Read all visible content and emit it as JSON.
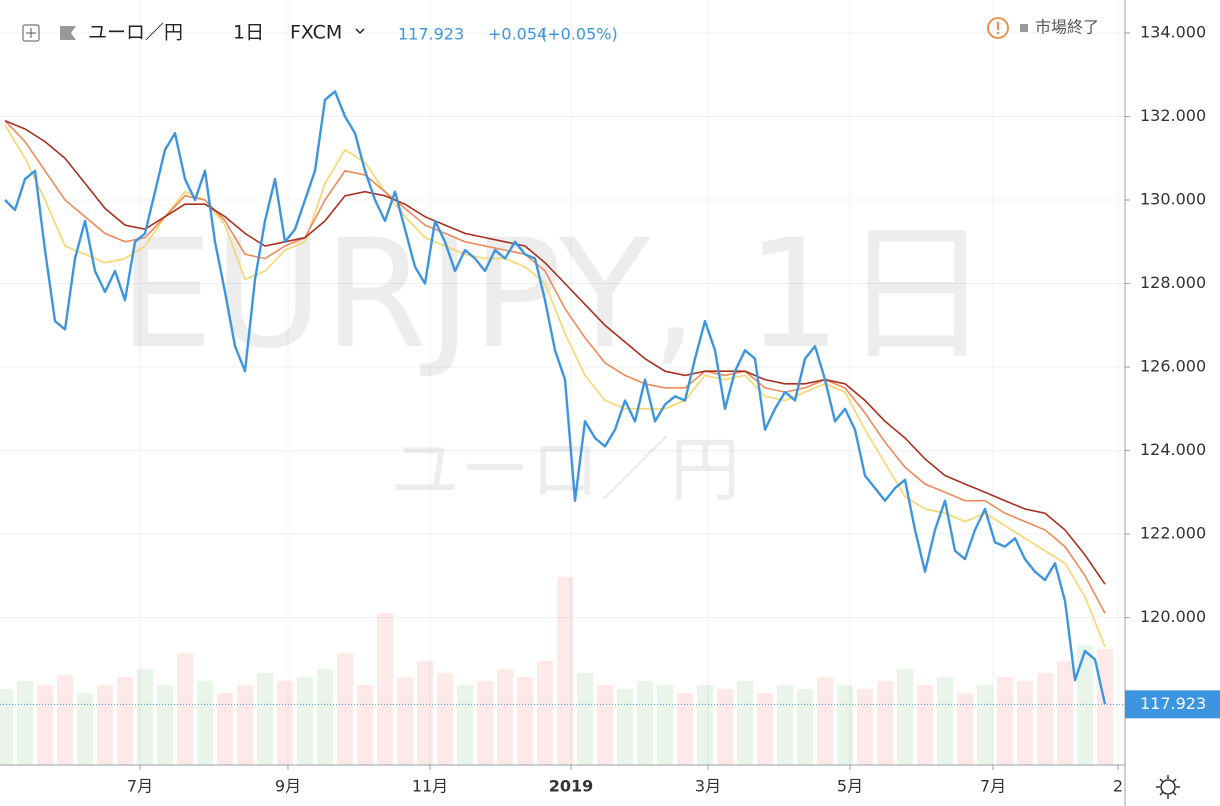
{
  "chart_data": {
    "type": "line",
    "symbol": "ユーロ／円",
    "interval": "1日",
    "source": "FXCM",
    "last_price": 117.923,
    "change": {
      "value": 0.054,
      "label": "+0.054"
    },
    "change_pct": {
      "value": 0.05,
      "label": "(+0.05%)"
    },
    "status": "市場終了",
    "watermark": "EURJPY, 1日",
    "xlim": [
      -0.5,
      112
    ],
    "xticks": [
      {
        "value": 13.5,
        "label": "7月"
      },
      {
        "value": 28.3,
        "label": "9月"
      },
      {
        "value": 42.5,
        "label": "11月"
      },
      {
        "value": 56.6,
        "label": "2019"
      },
      {
        "value": 70.3,
        "label": "3月"
      },
      {
        "value": 84.5,
        "label": "5月"
      },
      {
        "value": 98.8,
        "label": "7月"
      },
      {
        "value": 111.3,
        "label": "2"
      }
    ],
    "ylim": [
      116.47,
      134.79
    ],
    "yticks": [
      {
        "value": 120,
        "label": "120.000"
      },
      {
        "value": 122,
        "label": "122.000"
      },
      {
        "value": 124,
        "label": "124.000"
      },
      {
        "value": 126,
        "label": "126.000"
      },
      {
        "value": 128,
        "label": "128.000"
      },
      {
        "value": 130,
        "label": "130.000"
      },
      {
        "value": 132,
        "label": "132.000"
      },
      {
        "value": 134,
        "label": "134.000"
      }
    ],
    "grid": true,
    "series": [
      {
        "color": "#3d95e0",
        "values": [
          130.0,
          129.76,
          130.5,
          130.7,
          128.8,
          127.1,
          126.9,
          128.6,
          129.5,
          128.3,
          127.8,
          128.3,
          127.6,
          129.0,
          129.2,
          130.2,
          131.2,
          131.6,
          130.5,
          130.0,
          130.7,
          129.0,
          127.8,
          126.5,
          125.9,
          128.1,
          129.5,
          130.5,
          129.0,
          129.3,
          130.0,
          130.7,
          132.4,
          132.6,
          132.0,
          131.6,
          130.7,
          130.0,
          129.5,
          130.2,
          129.3,
          128.4,
          128.0,
          129.5,
          129.0,
          128.3,
          128.8,
          128.6,
          128.3,
          128.8,
          128.6,
          129.0,
          128.7,
          128.6,
          127.6,
          126.4,
          125.7,
          122.8,
          124.7,
          124.3,
          124.1,
          124.5,
          125.2,
          124.7,
          125.7,
          124.7,
          125.1,
          125.3,
          125.2,
          126.2,
          127.1,
          126.4,
          125.0,
          125.9,
          126.4,
          126.2,
          124.5,
          125.0,
          125.4,
          125.2,
          126.2,
          126.5,
          125.7,
          124.7,
          125.0,
          124.5,
          123.4,
          123.1,
          122.8,
          123.1,
          123.3,
          122.1,
          121.1,
          122.1,
          122.8,
          121.6,
          121.4,
          122.1,
          122.6,
          121.8,
          121.7,
          121.9,
          121.4,
          121.1,
          120.9,
          121.3,
          120.4,
          118.5,
          119.2,
          119.0,
          117.923
        ]
      }
    ],
    "ribbon_x": [
      0,
      2,
      4,
      6,
      8,
      10,
      12,
      14,
      16,
      18,
      20,
      22,
      24,
      26,
      28,
      30,
      32,
      34,
      36,
      38,
      40,
      42,
      44,
      46,
      48,
      50,
      52,
      54,
      56,
      58,
      60,
      62,
      64,
      66,
      68,
      70,
      72,
      74,
      76,
      78,
      80,
      82,
      84,
      86,
      88,
      90,
      92,
      94,
      96,
      98,
      100,
      102,
      104,
      106,
      108,
      110
    ],
    "ribbon": [
      {
        "color": "#f5d66e",
        "values": [
          131.8,
          131.0,
          130.0,
          128.9,
          128.7,
          128.5,
          128.6,
          128.9,
          129.6,
          130.2,
          130.0,
          129.4,
          128.1,
          128.3,
          128.8,
          129.0,
          130.4,
          131.2,
          130.9,
          130.2,
          129.6,
          129.1,
          128.9,
          128.7,
          128.6,
          128.6,
          128.4,
          128.0,
          126.8,
          125.8,
          125.2,
          125.0,
          125.0,
          125.0,
          125.2,
          125.8,
          125.7,
          125.8,
          125.3,
          125.2,
          125.4,
          125.6,
          125.4,
          124.5,
          123.7,
          122.9,
          122.6,
          122.5,
          122.3,
          122.5,
          122.2,
          121.9,
          121.6,
          121.3,
          120.5,
          119.3
        ]
      },
      {
        "color": "#ee8a5a",
        "values": [
          131.9,
          131.4,
          130.7,
          130.0,
          129.6,
          129.2,
          129.0,
          129.1,
          129.6,
          130.1,
          130.0,
          129.5,
          128.7,
          128.6,
          128.9,
          129.1,
          130.0,
          130.7,
          130.6,
          130.2,
          129.8,
          129.4,
          129.2,
          129.0,
          128.9,
          128.8,
          128.7,
          128.3,
          127.4,
          126.7,
          126.1,
          125.8,
          125.6,
          125.5,
          125.5,
          125.9,
          125.8,
          125.9,
          125.5,
          125.4,
          125.5,
          125.7,
          125.5,
          124.9,
          124.2,
          123.6,
          123.2,
          123.0,
          122.8,
          122.8,
          122.5,
          122.3,
          122.1,
          121.7,
          121.0,
          120.1
        ]
      },
      {
        "color": "#a8301f",
        "values": [
          131.9,
          131.7,
          131.4,
          131.0,
          130.4,
          129.8,
          129.4,
          129.3,
          129.6,
          129.9,
          129.9,
          129.6,
          129.2,
          128.9,
          129.0,
          129.1,
          129.5,
          130.1,
          130.2,
          130.1,
          129.9,
          129.6,
          129.4,
          129.2,
          129.1,
          129.0,
          128.9,
          128.5,
          128.0,
          127.5,
          127.0,
          126.6,
          126.2,
          125.9,
          125.8,
          125.9,
          125.9,
          125.9,
          125.7,
          125.6,
          125.6,
          125.7,
          125.6,
          125.2,
          124.7,
          124.3,
          123.8,
          123.4,
          123.2,
          123.0,
          122.8,
          122.6,
          122.5,
          122.1,
          121.5,
          120.8
        ]
      }
    ],
    "volume": [
      38,
      42,
      40,
      45,
      36,
      40,
      44,
      48,
      40,
      56,
      42,
      36,
      40,
      46,
      42,
      44,
      48,
      56,
      40,
      76,
      44,
      52,
      46,
      40,
      42,
      48,
      44,
      52,
      94,
      46,
      40,
      38,
      42,
      40,
      36,
      40,
      38,
      42,
      36,
      40,
      38,
      44,
      40,
      38,
      42,
      48,
      40,
      44,
      36,
      40,
      44,
      42,
      46,
      52,
      60,
      58
    ],
    "volume_lim": [
      0,
      100
    ]
  }
}
